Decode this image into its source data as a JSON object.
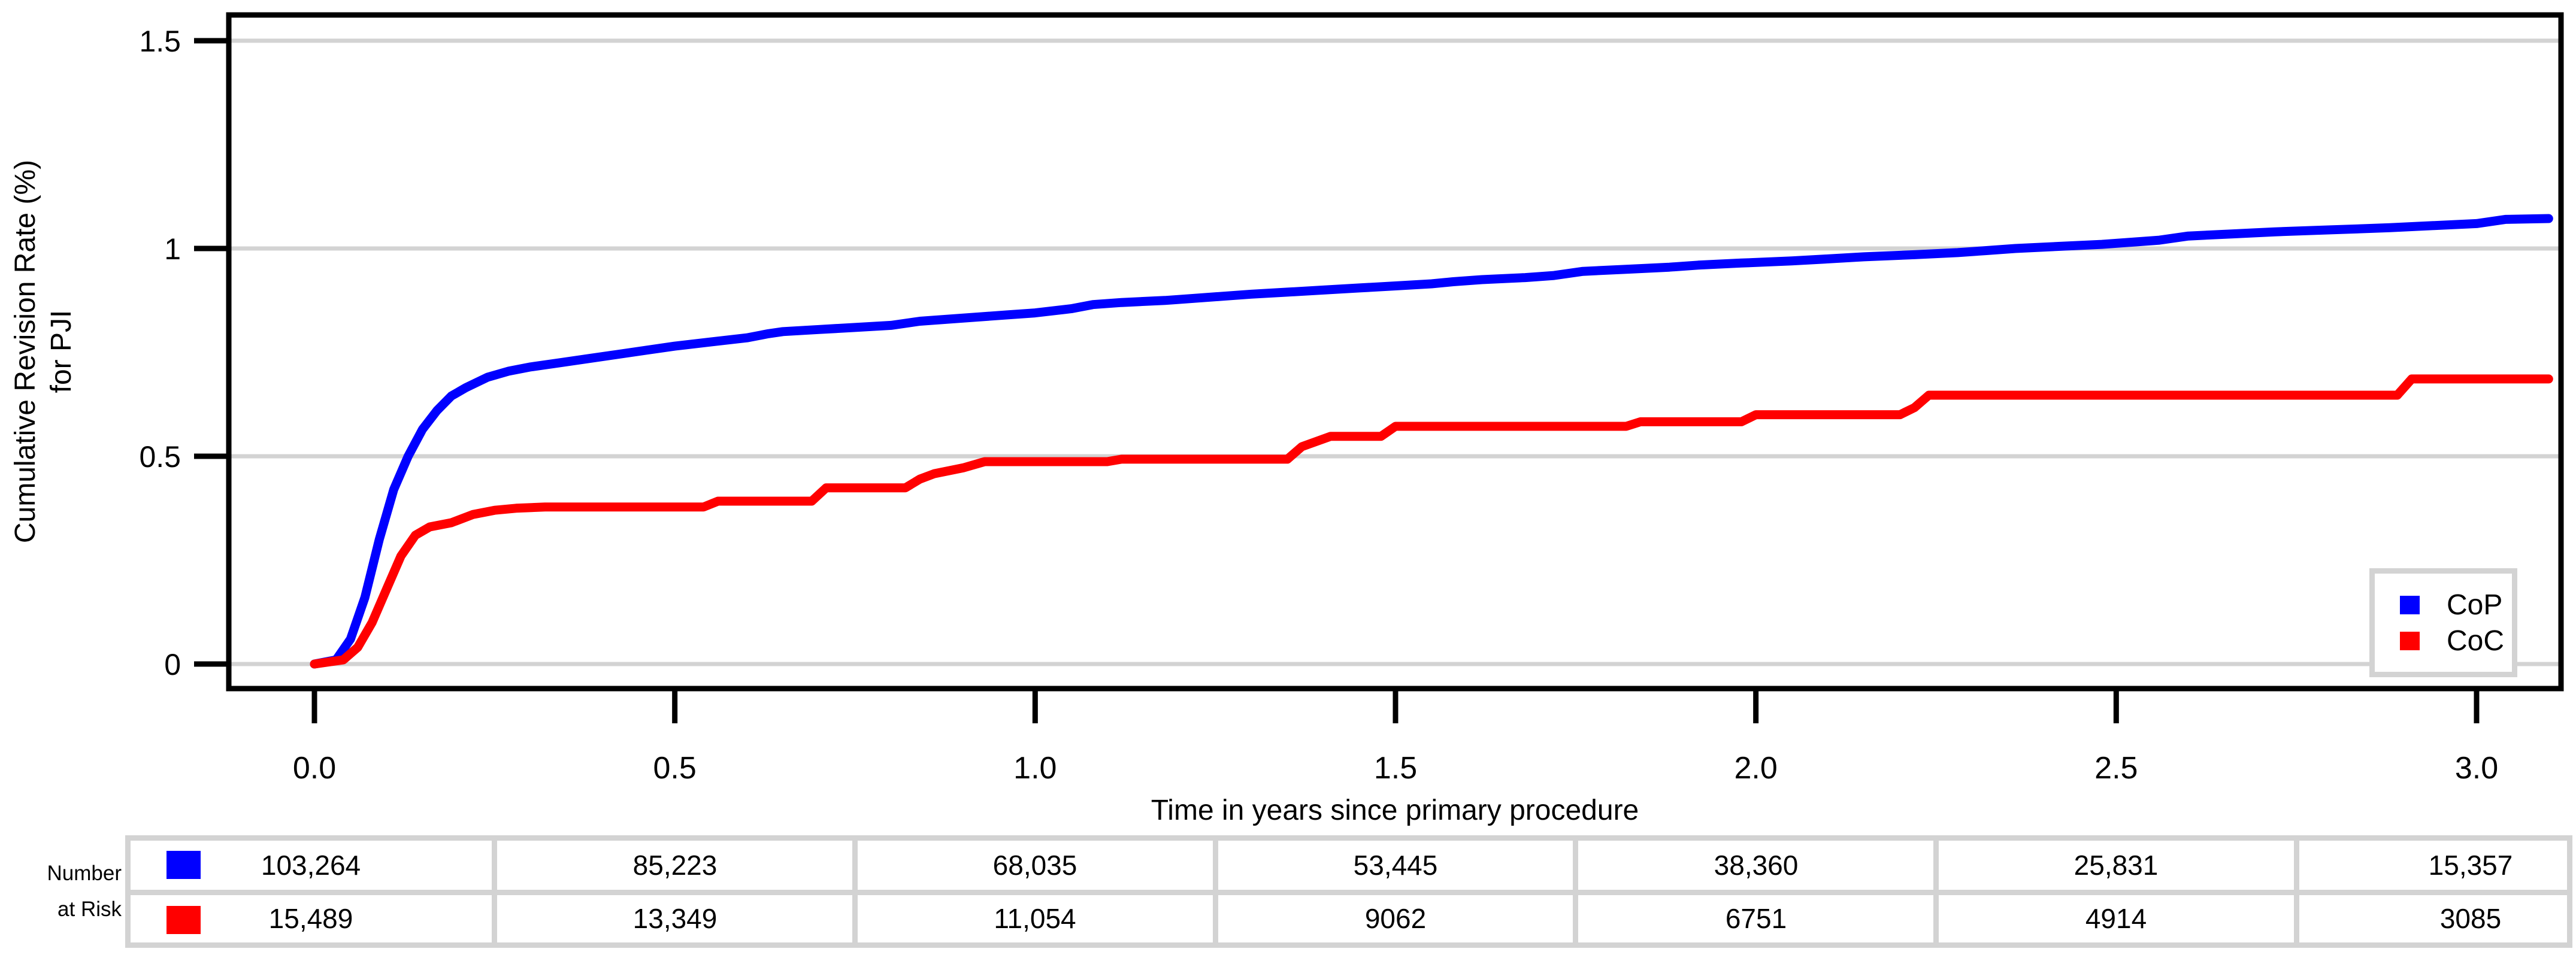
{
  "colors": {
    "cop": "#0000ff",
    "coc": "#ff0000",
    "grid": "#d3d3d3",
    "axis": "#000000",
    "background": "#ffffff"
  },
  "chart_data": {
    "type": "line",
    "subtype": "kaplan-meier-cumulative-incidence",
    "xlabel": "Time in years since primary procedure",
    "ylabel_line1": "Cumulative Revision Rate (%)",
    "ylabel_line2": "for PJI",
    "xlim": [
      -0.12,
      3.12
    ],
    "ylim": [
      -0.06,
      1.56
    ],
    "grid": "horizontal-only",
    "x_ticks": {
      "values": [
        0.0,
        0.5,
        1.0,
        1.5,
        2.0,
        2.5,
        3.0
      ],
      "labels": [
        "0.0",
        "0.5",
        "1.0",
        "1.5",
        "2.0",
        "2.5",
        "3.0"
      ]
    },
    "y_ticks": {
      "values": [
        0,
        0.5,
        1,
        1.5
      ],
      "labels": [
        "0",
        "0.5",
        "1",
        "1.5"
      ]
    },
    "legend": {
      "position": "bottom-right",
      "entries": [
        {
          "label": "CoP",
          "color": "#0000ff"
        },
        {
          "label": "CoC",
          "color": "#ff0000"
        }
      ]
    },
    "series": [
      {
        "name": "CoP",
        "color": "#0000ff",
        "points": [
          [
            0.0,
            0.0
          ],
          [
            0.03,
            0.01
          ],
          [
            0.05,
            0.06
          ],
          [
            0.07,
            0.16
          ],
          [
            0.09,
            0.3
          ],
          [
            0.11,
            0.42
          ],
          [
            0.13,
            0.5
          ],
          [
            0.15,
            0.565
          ],
          [
            0.17,
            0.61
          ],
          [
            0.19,
            0.645
          ],
          [
            0.21,
            0.665
          ],
          [
            0.24,
            0.69
          ],
          [
            0.27,
            0.705
          ],
          [
            0.3,
            0.715
          ],
          [
            0.34,
            0.725
          ],
          [
            0.38,
            0.735
          ],
          [
            0.42,
            0.745
          ],
          [
            0.46,
            0.755
          ],
          [
            0.5,
            0.765
          ],
          [
            0.55,
            0.775
          ],
          [
            0.6,
            0.785
          ],
          [
            0.63,
            0.795
          ],
          [
            0.65,
            0.8
          ],
          [
            0.7,
            0.805
          ],
          [
            0.75,
            0.81
          ],
          [
            0.8,
            0.815
          ],
          [
            0.84,
            0.825
          ],
          [
            0.88,
            0.83
          ],
          [
            0.92,
            0.835
          ],
          [
            0.96,
            0.84
          ],
          [
            1.0,
            0.845
          ],
          [
            1.05,
            0.855
          ],
          [
            1.08,
            0.865
          ],
          [
            1.12,
            0.87
          ],
          [
            1.18,
            0.875
          ],
          [
            1.22,
            0.88
          ],
          [
            1.26,
            0.885
          ],
          [
            1.3,
            0.89
          ],
          [
            1.35,
            0.895
          ],
          [
            1.4,
            0.9
          ],
          [
            1.45,
            0.905
          ],
          [
            1.5,
            0.91
          ],
          [
            1.55,
            0.915
          ],
          [
            1.58,
            0.92
          ],
          [
            1.62,
            0.925
          ],
          [
            1.68,
            0.93
          ],
          [
            1.72,
            0.935
          ],
          [
            1.76,
            0.945
          ],
          [
            1.82,
            0.95
          ],
          [
            1.88,
            0.955
          ],
          [
            1.92,
            0.96
          ],
          [
            1.98,
            0.965
          ],
          [
            2.05,
            0.97
          ],
          [
            2.1,
            0.975
          ],
          [
            2.15,
            0.98
          ],
          [
            2.22,
            0.985
          ],
          [
            2.28,
            0.99
          ],
          [
            2.32,
            0.995
          ],
          [
            2.36,
            1.0
          ],
          [
            2.42,
            1.005
          ],
          [
            2.48,
            1.01
          ],
          [
            2.52,
            1.015
          ],
          [
            2.56,
            1.02
          ],
          [
            2.6,
            1.03
          ],
          [
            2.66,
            1.035
          ],
          [
            2.72,
            1.04
          ],
          [
            2.8,
            1.045
          ],
          [
            2.88,
            1.05
          ],
          [
            2.94,
            1.055
          ],
          [
            3.0,
            1.06
          ],
          [
            3.04,
            1.07
          ],
          [
            3.1,
            1.072
          ]
        ]
      },
      {
        "name": "CoC",
        "color": "#ff0000",
        "points": [
          [
            0.0,
            0.0
          ],
          [
            0.04,
            0.01
          ],
          [
            0.06,
            0.04
          ],
          [
            0.08,
            0.1
          ],
          [
            0.1,
            0.18
          ],
          [
            0.12,
            0.26
          ],
          [
            0.14,
            0.31
          ],
          [
            0.16,
            0.33
          ],
          [
            0.19,
            0.34
          ],
          [
            0.22,
            0.36
          ],
          [
            0.25,
            0.37
          ],
          [
            0.28,
            0.375
          ],
          [
            0.32,
            0.378
          ],
          [
            0.54,
            0.378
          ],
          [
            0.56,
            0.392
          ],
          [
            0.69,
            0.392
          ],
          [
            0.71,
            0.424
          ],
          [
            0.82,
            0.424
          ],
          [
            0.84,
            0.445
          ],
          [
            0.86,
            0.458
          ],
          [
            0.9,
            0.472
          ],
          [
            0.93,
            0.487
          ],
          [
            1.1,
            0.487
          ],
          [
            1.12,
            0.493
          ],
          [
            1.35,
            0.493
          ],
          [
            1.37,
            0.523
          ],
          [
            1.41,
            0.548
          ],
          [
            1.48,
            0.548
          ],
          [
            1.5,
            0.572
          ],
          [
            1.82,
            0.572
          ],
          [
            1.84,
            0.583
          ],
          [
            1.98,
            0.583
          ],
          [
            2.0,
            0.6
          ],
          [
            2.2,
            0.6
          ],
          [
            2.22,
            0.617
          ],
          [
            2.24,
            0.647
          ],
          [
            2.89,
            0.647
          ],
          [
            2.91,
            0.686
          ],
          [
            3.1,
            0.686
          ]
        ]
      }
    ]
  },
  "risk_table": {
    "row_label_line1": "Number",
    "row_label_line2": "at Risk",
    "time_points": [
      0.0,
      0.5,
      1.0,
      1.5,
      2.0,
      2.5,
      3.0
    ],
    "rows": [
      {
        "series": "CoP",
        "color": "#0000ff",
        "counts": [
          "103,264",
          "85,223",
          "68,035",
          "53,445",
          "38,360",
          "25,831",
          "15,357"
        ]
      },
      {
        "series": "CoC",
        "color": "#ff0000",
        "counts": [
          "15,489",
          "13,349",
          "11,054",
          "9062",
          "6751",
          "4914",
          "3085"
        ]
      }
    ]
  }
}
